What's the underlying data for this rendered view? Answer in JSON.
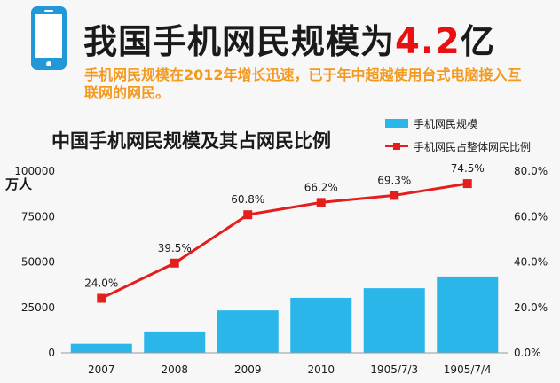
{
  "header": {
    "title_main": "我国手机网民规模为",
    "title_number": "4.2",
    "title_suffix": "亿",
    "subtitle": "手机网民规模在2012年增长迅速，已于年中超越使用台式电脑接入互联网的网民。"
  },
  "chart_data": {
    "type": "bar",
    "title": "中国手机网民规模及其占网民比例",
    "categories": [
      "2007",
      "2008",
      "2009",
      "2010",
      "1905/7/3",
      "1905/7/4"
    ],
    "series": [
      {
        "name": "手机网民规模",
        "type": "bar",
        "axis": "left",
        "values": [
          5040,
          11760,
          23344,
          30274,
          35558,
          41997
        ]
      },
      {
        "name": "手机网民占整体网民比例",
        "type": "line",
        "axis": "right",
        "values": [
          24.0,
          39.5,
          60.8,
          66.2,
          69.3,
          74.5
        ]
      }
    ],
    "y_left": {
      "unit": "万人",
      "ylim": [
        0,
        100000
      ],
      "ticks": [
        "100000",
        "75000",
        "50000",
        "25000",
        "0"
      ]
    },
    "y_right": {
      "ylim": [
        0,
        80
      ],
      "ticks": [
        "80.0%",
        "60.0%",
        "40.0%",
        "20.0%",
        "0.0%"
      ]
    },
    "data_labels": [
      "24.0%",
      "39.5%",
      "60.8%",
      "66.2%",
      "69.3%",
      "74.5%"
    ],
    "legend_position": "top-right",
    "colors": {
      "bar": "#2bb6ea",
      "line": "#e41d1d"
    }
  }
}
